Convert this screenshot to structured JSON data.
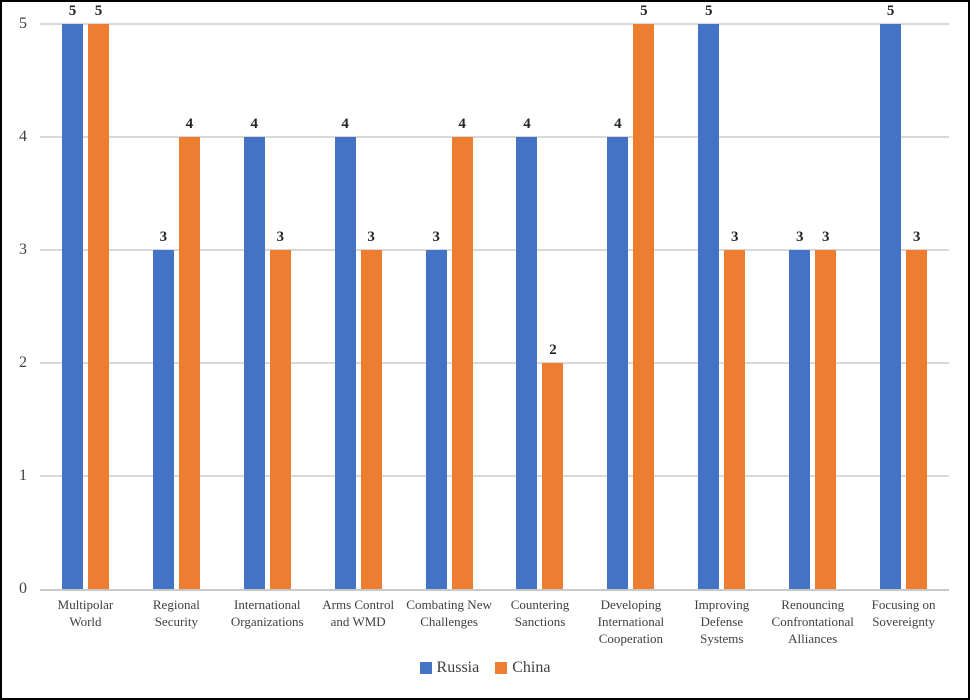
{
  "chart_data": {
    "type": "bar",
    "title": "",
    "xlabel": "",
    "ylabel": "",
    "ylim": [
      0,
      5
    ],
    "yticks": [
      0,
      1,
      2,
      3,
      4,
      5
    ],
    "grid": true,
    "data_labels": true,
    "legend_position": "bottom",
    "categories": [
      "Multipolar World",
      "Regional Security",
      "International Organizations",
      "Arms Control and WMD",
      "Combating New Challenges",
      "Countering Sanctions",
      "Developing International Cooperation",
      "Improving Defense Systems",
      "Renouncing Confrontational Alliances",
      "Focusing on Sovereignty"
    ],
    "series": [
      {
        "name": "Russia",
        "color": "#4472C4",
        "values": [
          5,
          3,
          4,
          4,
          3,
          4,
          4,
          5,
          3,
          5
        ]
      },
      {
        "name": "China",
        "color": "#ED7D31",
        "values": [
          5,
          4,
          3,
          3,
          4,
          2,
          5,
          3,
          3,
          3
        ]
      }
    ]
  },
  "colors": {
    "background": "#FFFFFF",
    "frame_border": "#000000",
    "gridline": "#D9D9D9",
    "axis_line": "#C9C9C9",
    "tick_label": "#404040",
    "data_label": "#262626",
    "legend_text": "#404040"
  }
}
